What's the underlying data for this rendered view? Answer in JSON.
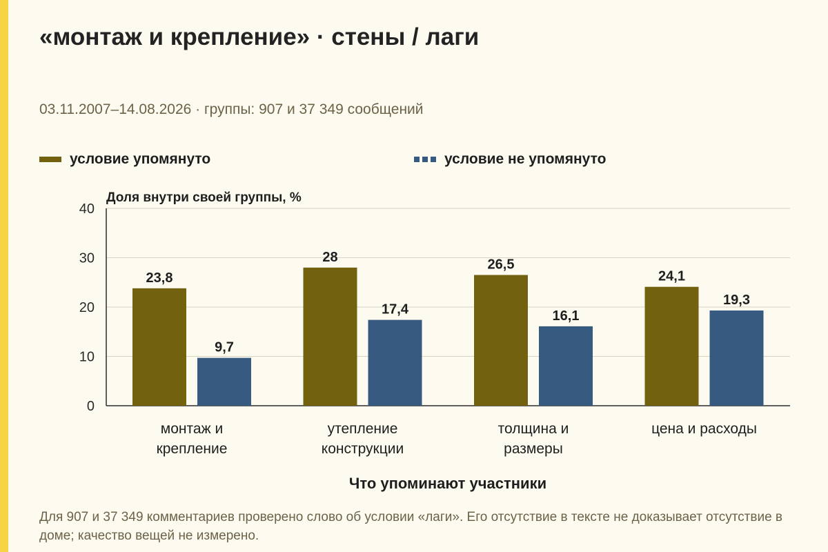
{
  "title": "«монтаж и крепление» · стены / лаги",
  "subtitle": "03.11.2007–14.08.2026 · группы: 907 и 37 349 сообщений",
  "note": "Для 907 и 37 349 комментариев проверено слово об условии «лаги». Его отсутствие в тексте не доказывает отсутствие в доме; качество вещей не измерено.",
  "colors": {
    "accent": "#f7d443",
    "mentioned": "#72620f",
    "not_mentioned": "#365a80",
    "background": "#fdfbf0"
  },
  "chart_data": {
    "type": "bar",
    "categories": [
      [
        "монтаж и",
        "крепление"
      ],
      [
        "утепление",
        "конструкции"
      ],
      [
        "толщина и",
        "размеры"
      ],
      [
        "цена и расходы"
      ]
    ],
    "series": [
      {
        "name": "условие упомянуто",
        "color": "#72620f",
        "values": [
          23.8,
          28,
          26.5,
          24.1
        ],
        "labels": [
          "23,8",
          "28",
          "26,5",
          "24,1"
        ]
      },
      {
        "name": "условие не упомянуто",
        "color": "#365a80",
        "values": [
          9.7,
          17.4,
          16.1,
          19.3
        ],
        "labels": [
          "9,7",
          "17,4",
          "16,1",
          "19,3"
        ]
      }
    ],
    "ylabel": "Доля внутри своей группы, %",
    "xlabel": "Что упоминают участники",
    "ylim": [
      0,
      40
    ],
    "yticks": [
      0,
      10,
      20,
      30,
      40
    ],
    "grid": true,
    "legend_position": "top-left"
  }
}
